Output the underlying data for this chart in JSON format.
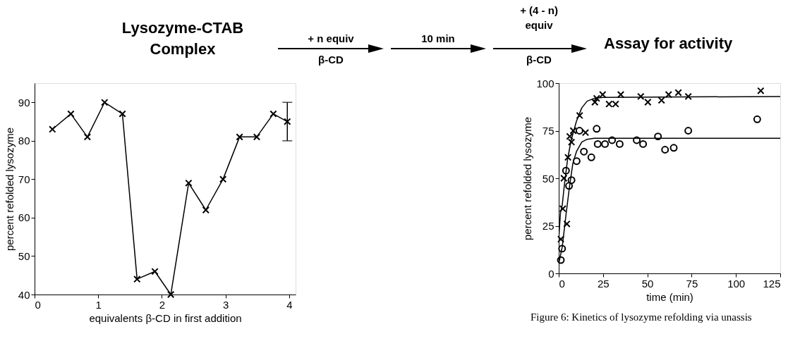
{
  "chart_data": [
    {
      "type": "other",
      "annotations": [
        "Lysozyme-CTAB\nComplex",
        "+ n equiv",
        "β-CD",
        "10 min",
        "+ (4 - n)\nequiv",
        "β-CD",
        "Assay for activity"
      ]
    },
    {
      "type": "line",
      "xlabel": "equivalents β-CD in first addition",
      "ylabel": "percent refolded lysozyme",
      "marker": "cross",
      "color": "#000000",
      "x": [
        0.28,
        0.57,
        0.83,
        1.1,
        1.38,
        1.61,
        1.89,
        2.14,
        2.42,
        2.69,
        2.96,
        3.22,
        3.49,
        3.75,
        3.97
      ],
      "values": [
        83,
        87,
        81,
        90,
        87,
        44,
        46,
        40,
        69,
        62,
        70,
        81,
        81,
        87,
        85
      ],
      "errors": [
        null,
        null,
        null,
        null,
        null,
        null,
        null,
        null,
        null,
        null,
        null,
        null,
        null,
        null,
        [
          80,
          90
        ]
      ],
      "xlim": [
        0,
        4.1
      ],
      "xticks": [
        0,
        1,
        2,
        3,
        4
      ],
      "ylim": [
        40,
        95
      ],
      "yticks": [
        40,
        50,
        60,
        70,
        80,
        90
      ],
      "grid": false,
      "legend": false
    },
    {
      "type": "scatter",
      "xlabel": "time (min)",
      "ylabel": "percent refolded lysozyme",
      "annotations": [
        "Figure 6: Kinetics of lysozyme refolding via unassis"
      ],
      "xlim": [
        0,
        125
      ],
      "xticks": [
        0,
        25,
        50,
        75,
        100,
        125
      ],
      "ylim": [
        0,
        100
      ],
      "yticks": [
        0,
        25,
        50,
        75,
        100
      ],
      "grid": false,
      "legend": false,
      "series": [
        {
          "type": "scatter",
          "marker": "cross",
          "color": "#000000",
          "x": [
            1.2,
            2.3,
            2.9,
            4.6,
            5.2,
            6.2,
            7.2,
            8.2,
            11.8,
            15.1,
            20.4,
            21.4,
            24.8,
            28.4,
            32.1,
            35.0,
            46.3,
            50.3,
            58,
            62,
            67.5,
            73.1,
            114
          ],
          "values": [
            18,
            34,
            50,
            26,
            61,
            72,
            69,
            75,
            83,
            74,
            90,
            92,
            94,
            89,
            89,
            94,
            93,
            90,
            91,
            94,
            95,
            93,
            96
          ]
        },
        {
          "type": "scatter",
          "marker": "circle",
          "color": "#000000",
          "x": [
            1.2,
            1.9,
            4.1,
            5.8,
            7.2,
            10.1,
            11.7,
            14.2,
            18.4,
            21.4,
            22,
            26.1,
            30.1,
            34.4,
            44,
            47.6,
            56,
            60,
            64.9,
            73.1,
            112
          ],
          "values": [
            7,
            13,
            54,
            46,
            49,
            59,
            75,
            64,
            61,
            76,
            68,
            68,
            70,
            68,
            70,
            68,
            72,
            65,
            66,
            75,
            81
          ]
        },
        {
          "type": "line",
          "marker": "none",
          "color": "#000000",
          "x": [
            0,
            1,
            2,
            3,
            5,
            7,
            10,
            13,
            16,
            20,
            25,
            125
          ],
          "values": [
            18,
            32,
            36,
            45,
            60,
            70,
            80,
            87,
            90.5,
            92,
            92.5,
            93
          ]
        },
        {
          "type": "line",
          "marker": "none",
          "color": "#000000",
          "x": [
            0,
            2,
            4,
            6,
            8,
            10,
            13,
            16,
            20,
            125
          ],
          "values": [
            5,
            14,
            30,
            45,
            58,
            64,
            69,
            70.5,
            71,
            71
          ]
        }
      ]
    }
  ]
}
